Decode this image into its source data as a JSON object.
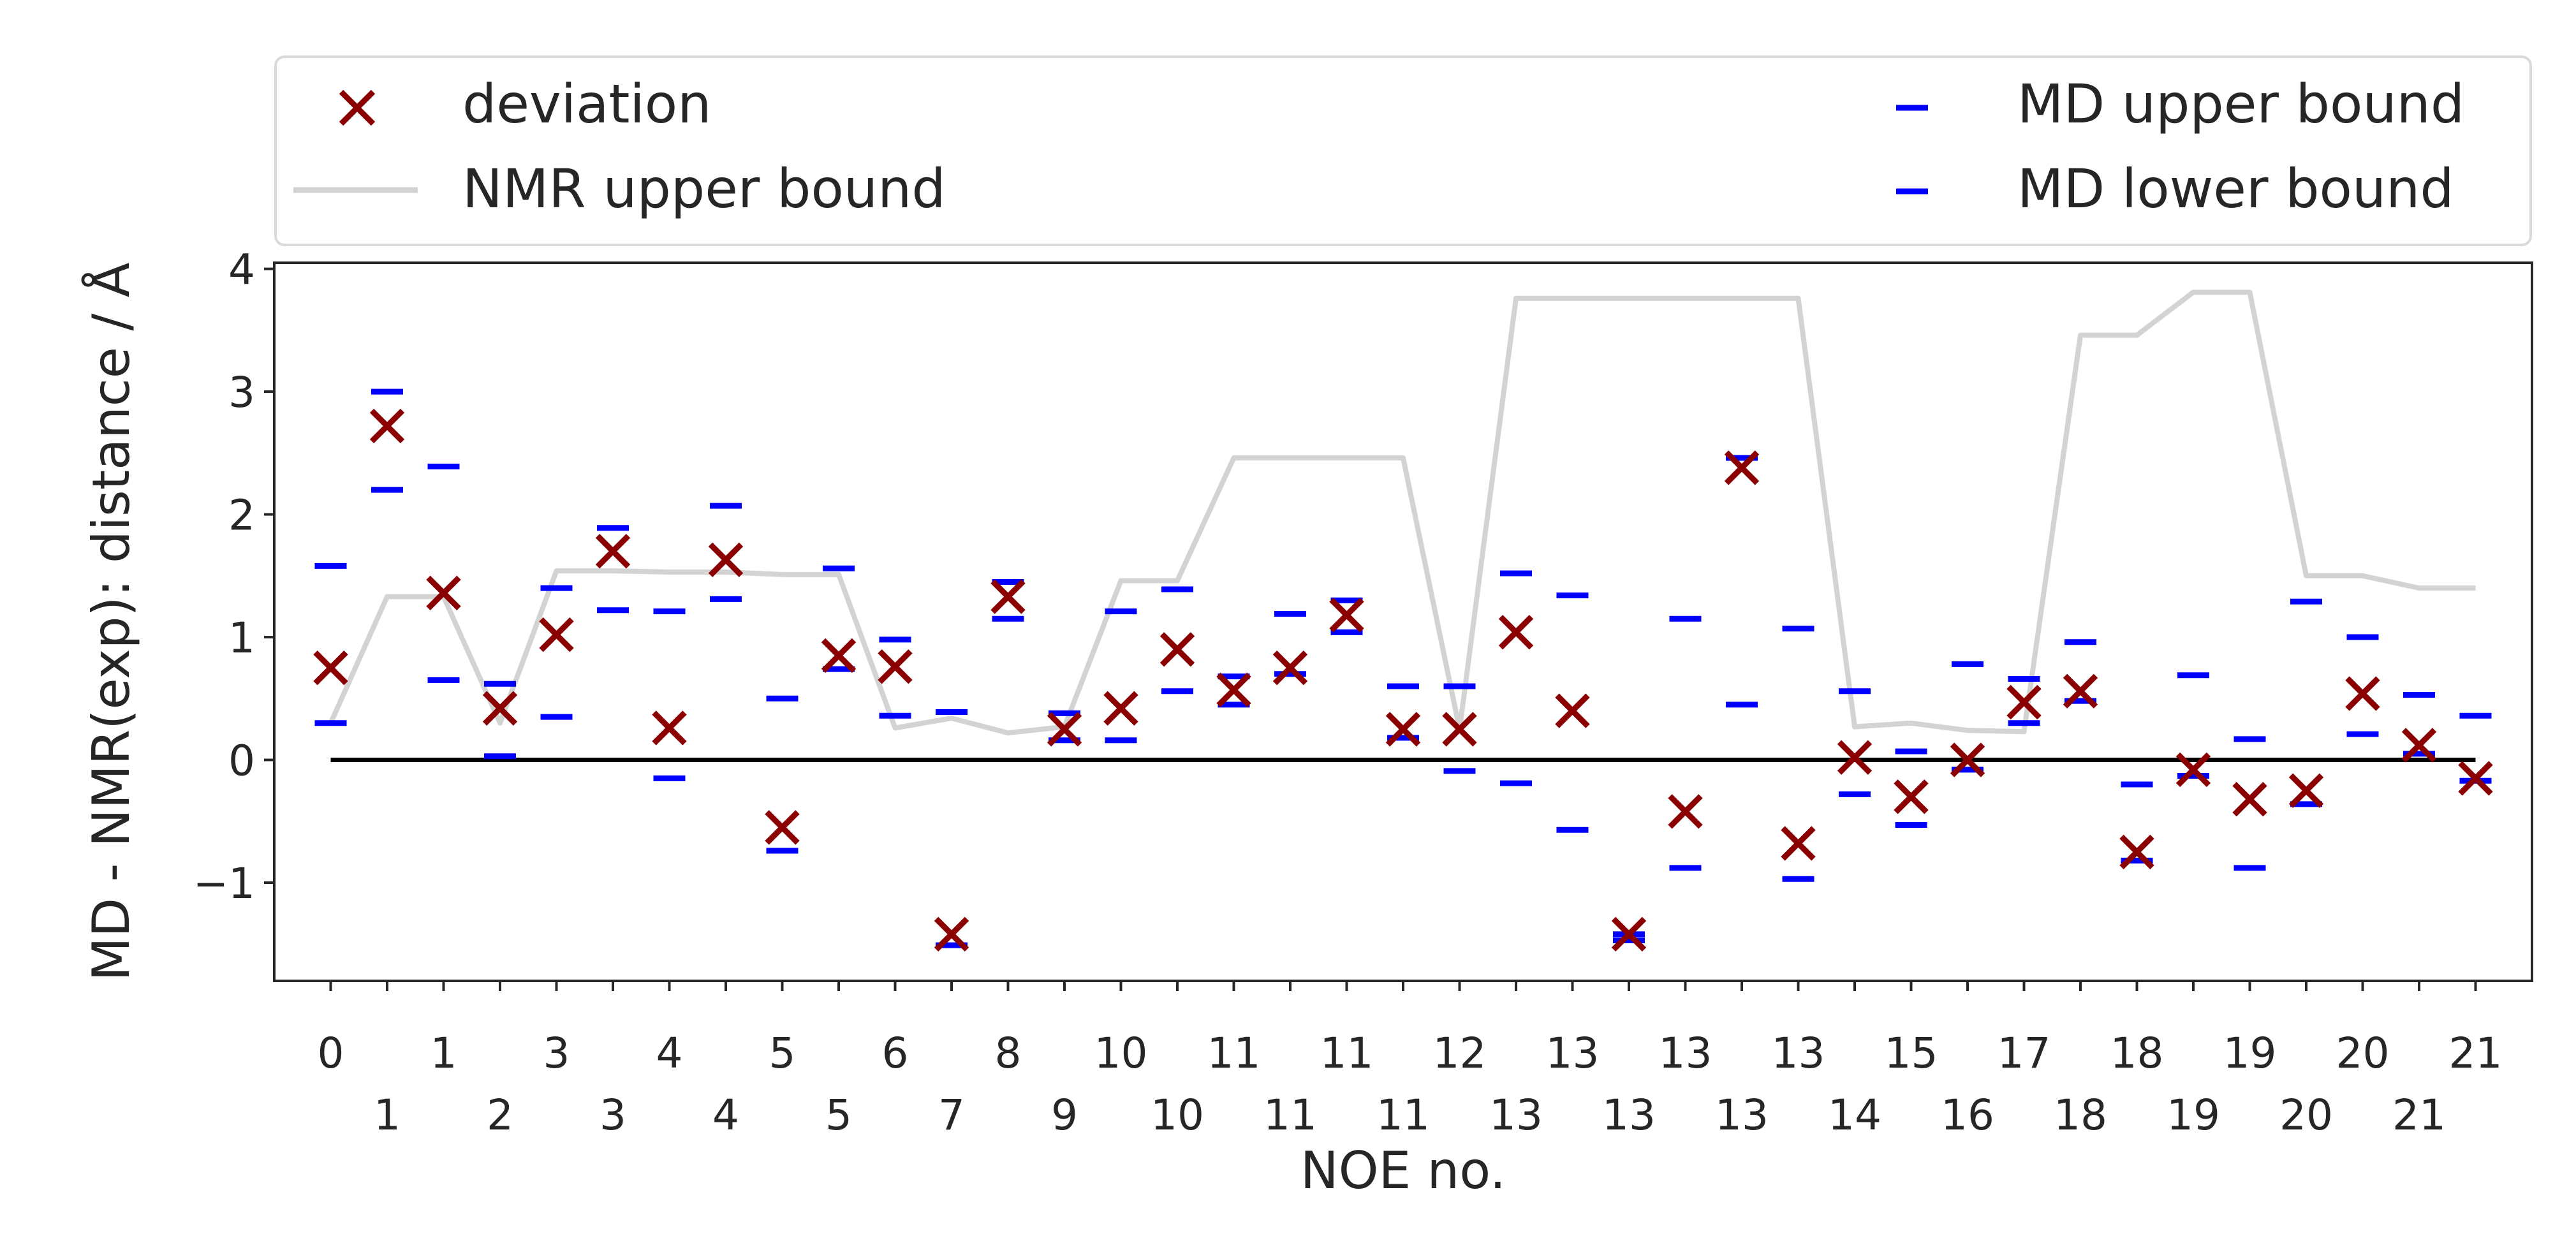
{
  "chart_data": {
    "type": "scatter",
    "title": "",
    "xlabel": "NOE no.",
    "ylabel": "MD - NMR(exp): distance / Å",
    "ylim": [
      -1.8,
      4.05
    ],
    "xlim": [
      -1.0,
      39.0
    ],
    "yticks": [
      -1,
      0,
      1,
      2,
      3,
      4
    ],
    "ytick_labels": [
      "−1",
      "0",
      "1",
      "2",
      "3",
      "4"
    ],
    "x_positions": [
      0,
      1,
      2,
      3,
      4,
      5,
      6,
      7,
      8,
      9,
      10,
      11,
      12,
      13,
      14,
      15,
      16,
      17,
      18,
      19,
      20,
      21,
      22,
      23,
      24,
      25,
      26,
      27,
      28,
      29,
      30,
      31,
      32,
      33,
      34,
      35,
      36,
      37,
      38
    ],
    "xtick_labels": [
      "0",
      "1",
      "1",
      "2",
      "3",
      "3",
      "4",
      "4",
      "5",
      "5",
      "6",
      "7",
      "8",
      "9",
      "10",
      "10",
      "11",
      "11",
      "11",
      "11",
      "12",
      "13",
      "13",
      "13",
      "13",
      "13",
      "13",
      "14",
      "15",
      "16",
      "17",
      "18",
      "18",
      "19",
      "19",
      "20",
      "20",
      "21",
      "21"
    ],
    "grid": false,
    "legend_placement": "top (above plot, two columns)",
    "legend": {
      "deviation": "deviation",
      "nmr_upper": "NMR upper bound",
      "md_upper": "MD upper bound",
      "md_lower": "MD lower bound"
    },
    "colors": {
      "deviation": "#8b0000",
      "nmr_upper": "#d3d3d3",
      "md_bounds": "#0000ff",
      "zero_line": "#000000"
    },
    "series": [
      {
        "name": "deviation",
        "values": [
          0.75,
          2.72,
          1.36,
          0.42,
          1.02,
          1.7,
          0.26,
          1.63,
          -0.55,
          0.85,
          0.76,
          -1.42,
          1.33,
          0.25,
          0.42,
          0.9,
          0.57,
          0.75,
          1.18,
          0.25,
          0.25,
          1.04,
          0.4,
          -1.42,
          -0.42,
          2.38,
          -0.68,
          0.02,
          -0.3,
          0.0,
          0.47,
          0.56,
          -0.75,
          -0.08,
          -0.32,
          -0.25,
          0.54,
          0.12,
          -0.15
        ]
      },
      {
        "name": "NMR upper bound",
        "values": [
          0.3,
          1.33,
          1.33,
          0.3,
          1.54,
          1.54,
          1.53,
          1.53,
          1.51,
          1.51,
          0.26,
          0.34,
          0.22,
          0.27,
          1.46,
          1.46,
          2.46,
          2.46,
          2.46,
          2.46,
          0.25,
          3.76,
          3.76,
          3.76,
          3.76,
          3.76,
          3.76,
          0.27,
          0.3,
          0.24,
          0.23,
          3.46,
          3.46,
          3.81,
          3.81,
          1.5,
          1.5,
          1.4,
          1.4
        ]
      },
      {
        "name": "MD upper bound",
        "values": [
          1.58,
          3.0,
          2.39,
          0.62,
          1.4,
          1.89,
          1.21,
          2.07,
          0.5,
          1.56,
          0.98,
          0.39,
          1.45,
          0.38,
          1.21,
          1.39,
          0.68,
          1.19,
          1.3,
          0.6,
          0.6,
          1.52,
          1.34,
          -1.42,
          1.15,
          2.46,
          1.07,
          0.56,
          0.07,
          0.78,
          0.66,
          0.96,
          -0.2,
          0.69,
          0.17,
          1.29,
          1.0,
          0.53,
          0.36
        ]
      },
      {
        "name": "MD lower bound",
        "values": [
          0.3,
          2.2,
          0.65,
          0.03,
          0.35,
          1.22,
          -0.15,
          1.31,
          -0.74,
          0.74,
          0.36,
          -1.51,
          1.15,
          0.16,
          0.16,
          0.56,
          0.45,
          0.7,
          1.04,
          0.18,
          -0.09,
          -0.19,
          -0.57,
          -1.47,
          -0.88,
          0.45,
          -0.97,
          -0.28,
          -0.53,
          -0.08,
          0.3,
          0.48,
          -0.82,
          -0.13,
          -0.88,
          -0.36,
          0.21,
          0.05,
          -0.17
        ]
      }
    ]
  }
}
